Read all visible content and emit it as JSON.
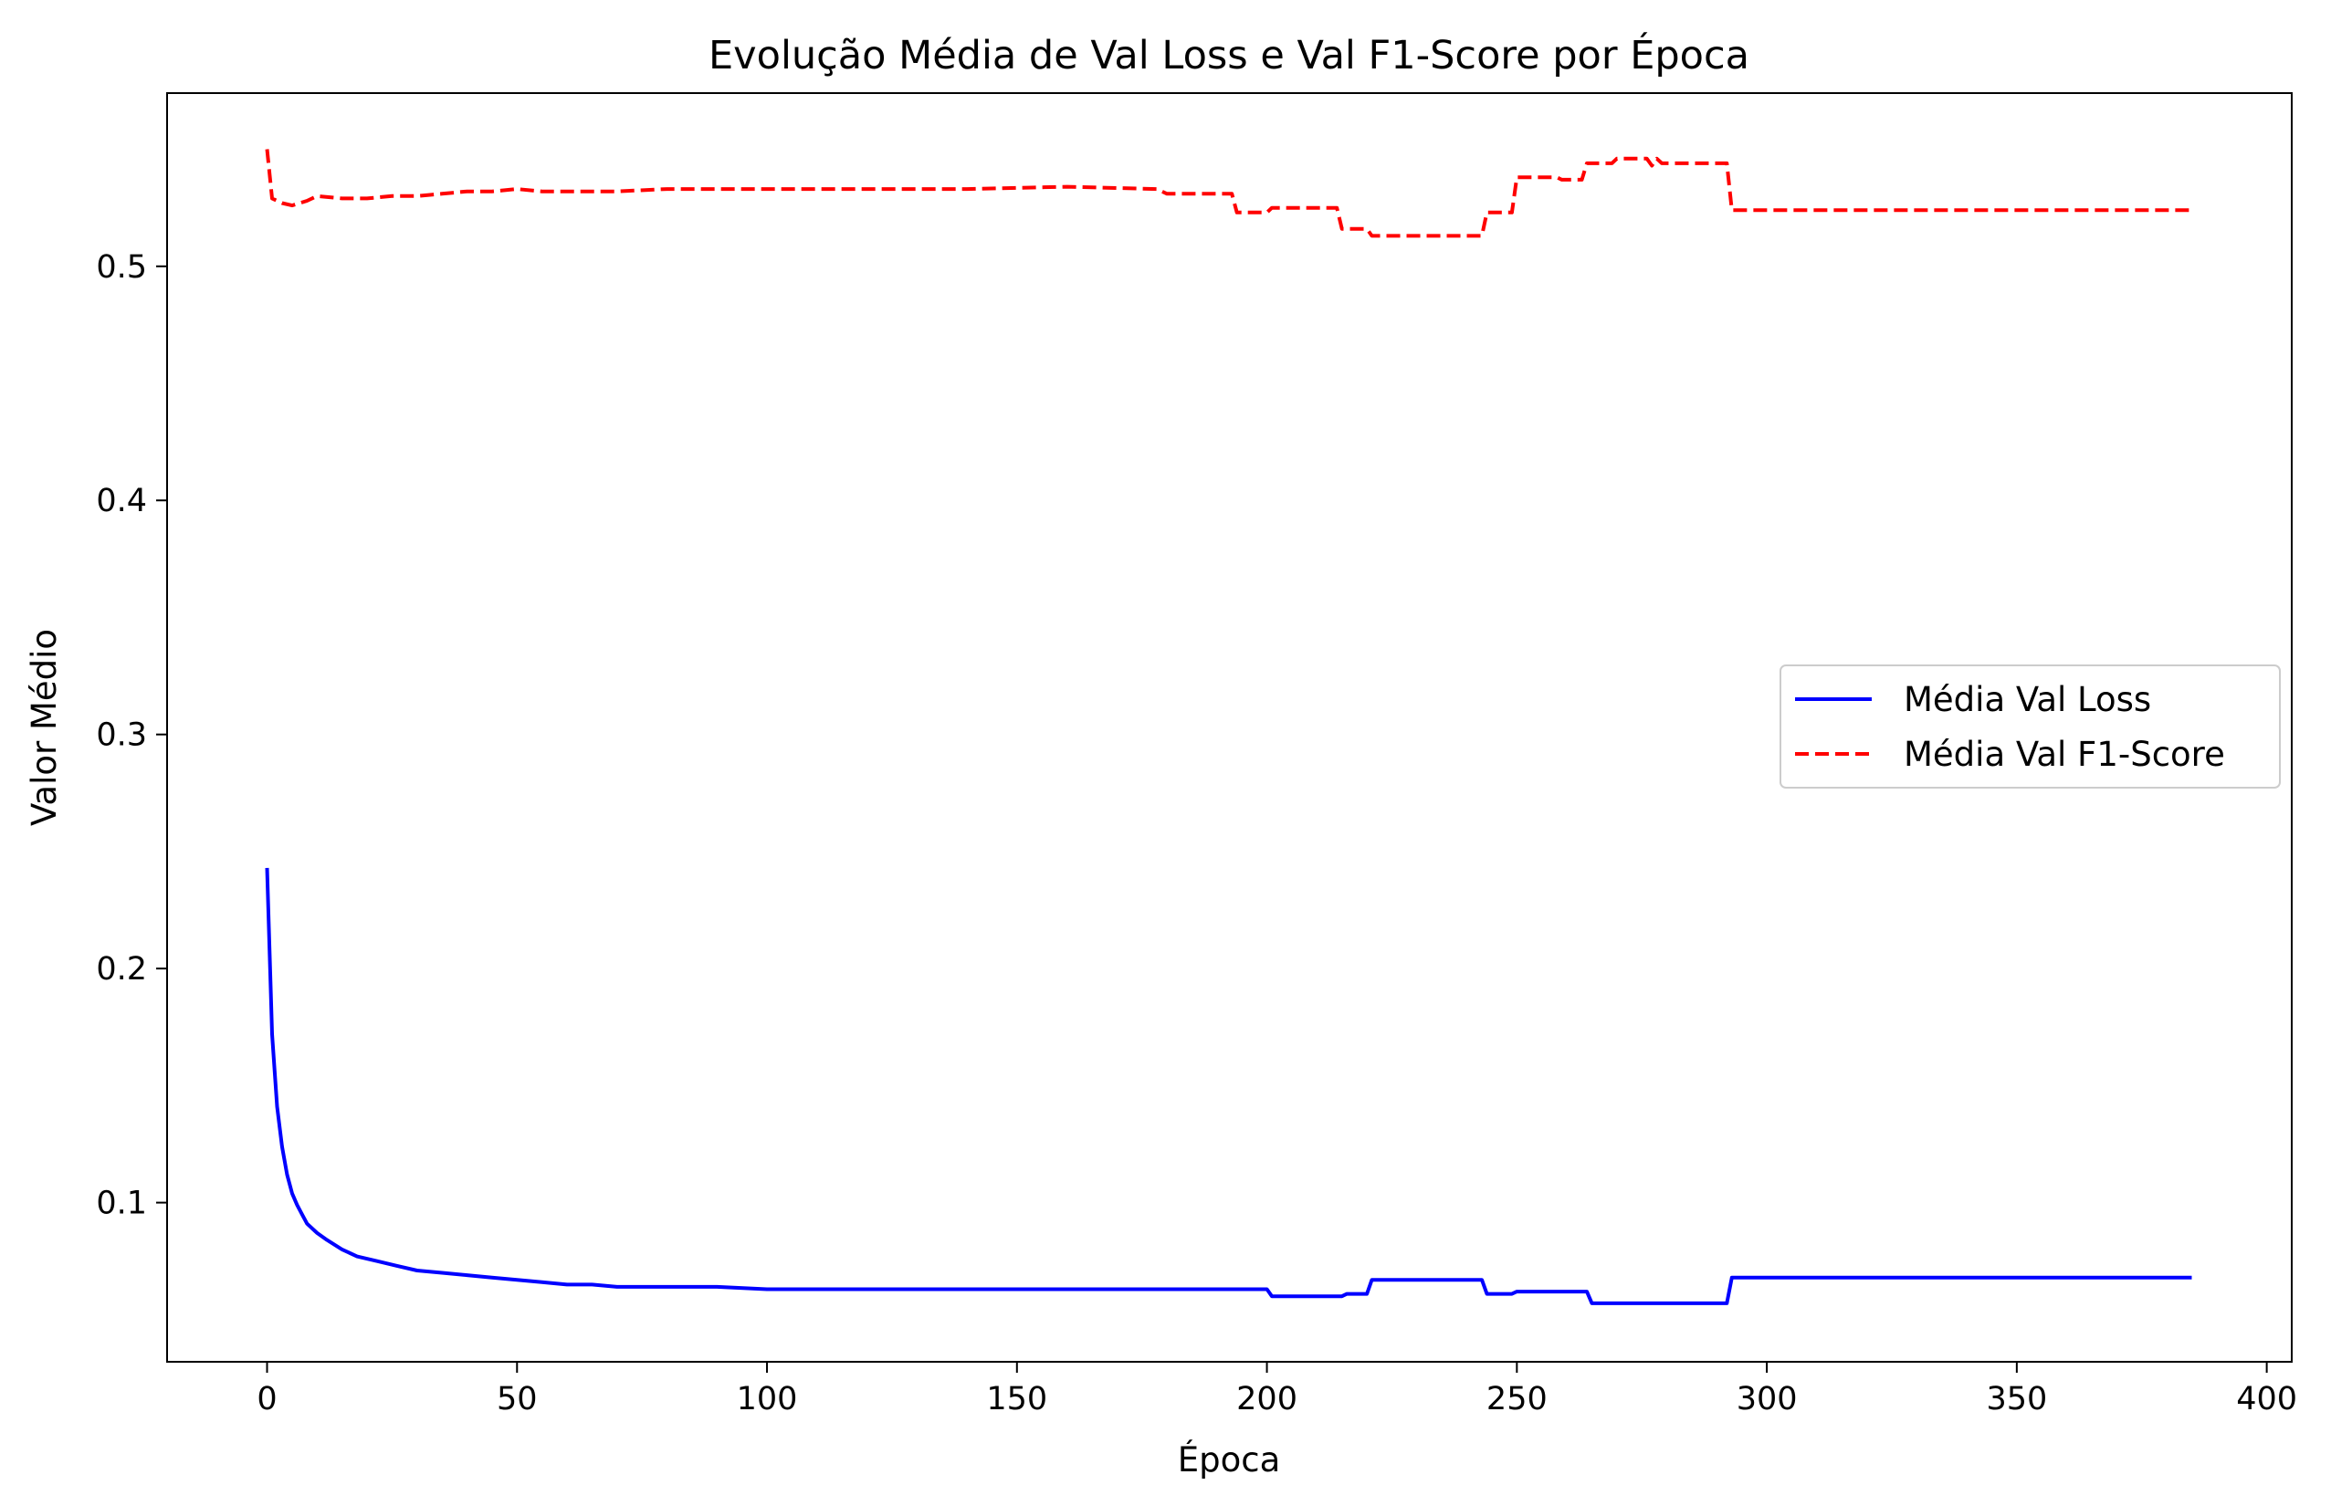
{
  "chart_data": {
    "type": "line",
    "title": "Evolução Média de Val Loss e Val F1-Score por Época",
    "xlabel": "Época",
    "ylabel": "Valor Médio",
    "xlim": [
      -20,
      405
    ],
    "ylim": [
      0.032,
      0.574
    ],
    "xticks": [
      0,
      50,
      100,
      150,
      200,
      250,
      300,
      350,
      400
    ],
    "yticks": [
      0.1,
      0.2,
      0.3,
      0.4,
      0.5
    ],
    "xtick_labels": [
      "0",
      "50",
      "100",
      "150",
      "200",
      "250",
      "300",
      "350",
      "400"
    ],
    "ytick_labels": [
      "0.1",
      "0.2",
      "0.3",
      "0.4",
      "0.5"
    ],
    "grid": false,
    "legend_position": "center-right",
    "legend": [
      "Média Val Loss",
      "Média Val F1-Score"
    ],
    "series": [
      {
        "name": "Média Val Loss",
        "color": "#0000ff",
        "style": "solid",
        "points": [
          [
            0,
            0.243
          ],
          [
            1,
            0.172
          ],
          [
            2,
            0.141
          ],
          [
            3,
            0.124
          ],
          [
            4,
            0.112
          ],
          [
            5,
            0.104
          ],
          [
            6,
            0.099
          ],
          [
            7,
            0.095
          ],
          [
            8,
            0.091
          ],
          [
            10,
            0.087
          ],
          [
            12,
            0.084
          ],
          [
            15,
            0.08
          ],
          [
            18,
            0.077
          ],
          [
            22,
            0.075
          ],
          [
            26,
            0.073
          ],
          [
            30,
            0.071
          ],
          [
            35,
            0.07
          ],
          [
            40,
            0.069
          ],
          [
            45,
            0.068
          ],
          [
            50,
            0.067
          ],
          [
            55,
            0.066
          ],
          [
            60,
            0.065
          ],
          [
            65,
            0.065
          ],
          [
            70,
            0.064
          ],
          [
            80,
            0.064
          ],
          [
            90,
            0.064
          ],
          [
            100,
            0.063
          ],
          [
            120,
            0.063
          ],
          [
            150,
            0.063
          ],
          [
            180,
            0.063
          ],
          [
            200,
            0.063
          ],
          [
            201,
            0.06
          ],
          [
            215,
            0.06
          ],
          [
            216,
            0.061
          ],
          [
            220,
            0.061
          ],
          [
            221,
            0.067
          ],
          [
            243,
            0.067
          ],
          [
            244,
            0.061
          ],
          [
            249,
            0.061
          ],
          [
            250,
            0.062
          ],
          [
            264,
            0.062
          ],
          [
            265,
            0.057
          ],
          [
            292,
            0.057
          ],
          [
            293,
            0.068
          ],
          [
            320,
            0.068
          ],
          [
            350,
            0.068
          ],
          [
            385,
            0.068
          ]
        ]
      },
      {
        "name": "Média Val F1-Score",
        "color": "#ff0000",
        "style": "dashed",
        "points": [
          [
            0,
            0.55
          ],
          [
            1,
            0.529
          ],
          [
            3,
            0.527
          ],
          [
            5,
            0.526
          ],
          [
            8,
            0.528
          ],
          [
            10,
            0.53
          ],
          [
            15,
            0.529
          ],
          [
            20,
            0.529
          ],
          [
            25,
            0.53
          ],
          [
            30,
            0.53
          ],
          [
            35,
            0.531
          ],
          [
            40,
            0.532
          ],
          [
            45,
            0.532
          ],
          [
            50,
            0.533
          ],
          [
            55,
            0.532
          ],
          [
            60,
            0.532
          ],
          [
            70,
            0.532
          ],
          [
            80,
            0.533
          ],
          [
            90,
            0.533
          ],
          [
            100,
            0.533
          ],
          [
            120,
            0.533
          ],
          [
            140,
            0.533
          ],
          [
            160,
            0.534
          ],
          [
            178,
            0.533
          ],
          [
            180,
            0.531
          ],
          [
            193,
            0.531
          ],
          [
            194,
            0.523
          ],
          [
            200,
            0.523
          ],
          [
            201,
            0.525
          ],
          [
            214,
            0.525
          ],
          [
            215,
            0.516
          ],
          [
            220,
            0.516
          ],
          [
            221,
            0.513
          ],
          [
            243,
            0.513
          ],
          [
            244,
            0.523
          ],
          [
            249,
            0.523
          ],
          [
            250,
            0.538
          ],
          [
            258,
            0.538
          ],
          [
            259,
            0.537
          ],
          [
            263,
            0.537
          ],
          [
            264,
            0.544
          ],
          [
            269,
            0.544
          ],
          [
            270,
            0.546
          ],
          [
            276,
            0.546
          ],
          [
            277,
            0.543
          ],
          [
            278,
            0.546
          ],
          [
            279,
            0.544
          ],
          [
            292,
            0.544
          ],
          [
            293,
            0.524
          ],
          [
            320,
            0.524
          ],
          [
            350,
            0.524
          ],
          [
            385,
            0.524
          ]
        ]
      }
    ]
  }
}
